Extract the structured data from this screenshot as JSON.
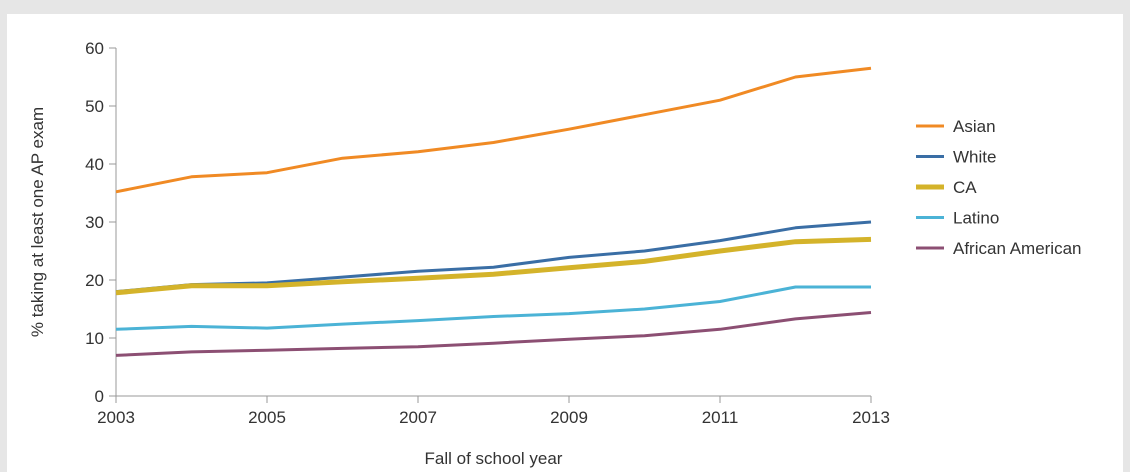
{
  "chart_data": {
    "type": "line",
    "title": "",
    "xlabel": "Fall of school year",
    "ylabel": "% taking at least one AP exam",
    "x": [
      2003,
      2004,
      2005,
      2006,
      2007,
      2008,
      2009,
      2010,
      2011,
      2012,
      2013
    ],
    "xlim": [
      2003,
      2013
    ],
    "ylim": [
      0,
      60
    ],
    "x_ticks": [
      "2003",
      "2005",
      "2007",
      "2009",
      "2011",
      "2013"
    ],
    "x_tick_values": [
      2003,
      2005,
      2007,
      2009,
      2011,
      2013
    ],
    "y_ticks": [
      "0",
      "10",
      "20",
      "30",
      "40",
      "50",
      "60"
    ],
    "y_tick_values": [
      0,
      10,
      20,
      30,
      40,
      50,
      60
    ],
    "grid": false,
    "legend_position": "right",
    "series": [
      {
        "name": "Asian",
        "color": "#f08a24",
        "width": "normal",
        "values": [
          35.2,
          37.8,
          38.5,
          41.0,
          42.1,
          43.7,
          46.0,
          48.5,
          51.0,
          55.0,
          56.5
        ]
      },
      {
        "name": "White",
        "color": "#3a6ea5",
        "width": "normal",
        "values": [
          18.0,
          19.2,
          19.5,
          20.5,
          21.5,
          22.2,
          23.9,
          25.0,
          26.8,
          29.0,
          30.0
        ]
      },
      {
        "name": "CA",
        "color": "#d4b32a",
        "width": "thick",
        "values": [
          17.8,
          19.0,
          19.0,
          19.7,
          20.3,
          21.0,
          22.1,
          23.2,
          25.0,
          26.6,
          27.0
        ]
      },
      {
        "name": "Latino",
        "color": "#4bb3d6",
        "width": "normal",
        "values": [
          11.5,
          12.0,
          11.7,
          12.4,
          13.0,
          13.7,
          14.2,
          15.0,
          16.3,
          18.8,
          18.8
        ]
      },
      {
        "name": "African American",
        "color": "#8c4f73",
        "width": "normal",
        "values": [
          7.0,
          7.6,
          7.9,
          8.2,
          8.5,
          9.1,
          9.8,
          10.4,
          11.5,
          13.3,
          14.4
        ]
      }
    ]
  }
}
